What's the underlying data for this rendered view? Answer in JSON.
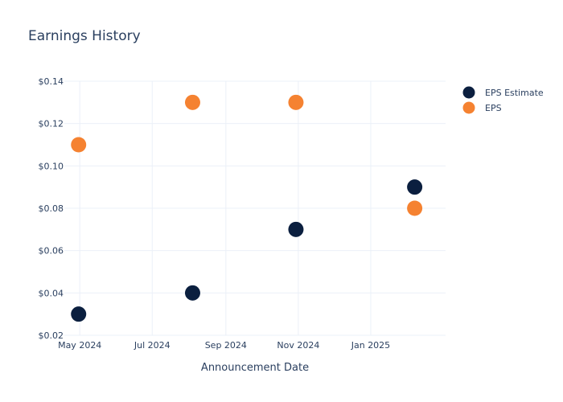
{
  "chart_data": {
    "type": "scatter",
    "title": "Earnings History",
    "xlabel": "Announcement Date",
    "ylabel": "",
    "x_tick_labels": [
      "May 2024",
      "Jul 2024",
      "Sep 2024",
      "Nov 2024",
      "Jan 2025"
    ],
    "x_ticks": [
      "2024-05-01",
      "2024-07-01",
      "2024-09-01",
      "2024-11-01",
      "2025-01-01"
    ],
    "x_range": [
      "2024-04-18",
      "2025-03-05"
    ],
    "y_tick_labels": [
      "$0.02",
      "$0.04",
      "$0.06",
      "$0.08",
      "$0.10",
      "$0.12",
      "$0.14"
    ],
    "y_ticks": [
      0.02,
      0.04,
      0.06,
      0.08,
      0.1,
      0.12,
      0.14
    ],
    "ylim": [
      0.02,
      0.14
    ],
    "grid": true,
    "legend_position": "top-right",
    "series": [
      {
        "name": "EPS Estimate",
        "color": "#0b1f3f",
        "points": [
          {
            "x": "2024-04-30",
            "y": 0.03
          },
          {
            "x": "2024-08-04",
            "y": 0.04
          },
          {
            "x": "2024-10-30",
            "y": 0.07
          },
          {
            "x": "2025-02-07",
            "y": 0.09
          }
        ]
      },
      {
        "name": "EPS",
        "color": "#f58231",
        "points": [
          {
            "x": "2024-04-30",
            "y": 0.11
          },
          {
            "x": "2024-08-04",
            "y": 0.13
          },
          {
            "x": "2024-10-30",
            "y": 0.13
          },
          {
            "x": "2025-02-07",
            "y": 0.08
          }
        ]
      }
    ]
  }
}
